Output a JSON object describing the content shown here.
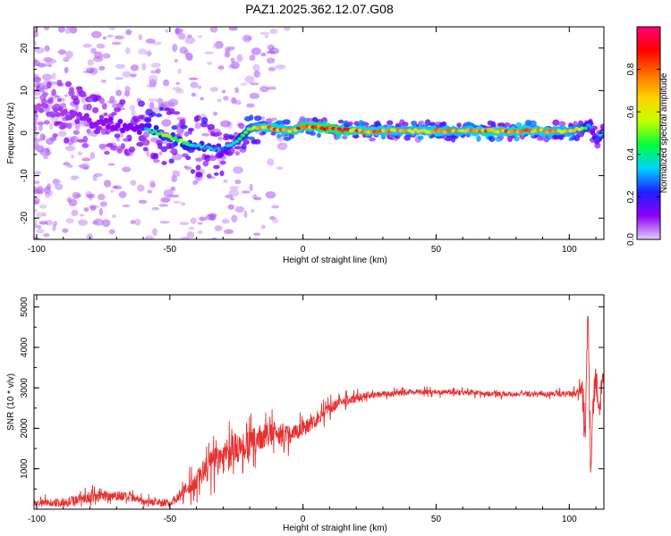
{
  "title": "PAZ1.2025.362.12.07.G08",
  "chart_data": [
    {
      "type": "heatmap",
      "panel": "spectrogram",
      "xlabel": "Height of straight line (km)",
      "ylabel": "Frequency (Hz)",
      "xlim": [
        -101,
        113
      ],
      "ylim": [
        -25,
        25
      ],
      "xticks": [
        -100,
        -50,
        0,
        50,
        100
      ],
      "yticks": [
        -20,
        -10,
        0,
        10,
        20
      ],
      "ridge": {
        "x": [
          -100,
          -90,
          -80,
          -70,
          -60,
          -55,
          -50,
          -45,
          -40,
          -35,
          -30,
          -25,
          -20,
          -15,
          -10,
          -5,
          0,
          5,
          10,
          20,
          30,
          40,
          50,
          60,
          70,
          80,
          90,
          100,
          105,
          108,
          110,
          113
        ],
        "freq": [
          6,
          5,
          3,
          2,
          1,
          0,
          -1,
          -2,
          -3,
          -3.5,
          -4,
          -2,
          1,
          1.5,
          1,
          0.5,
          1.5,
          1.5,
          1,
          0.5,
          0.5,
          0.5,
          0.5,
          0.5,
          0.5,
          0.5,
          0.5,
          0.5,
          1,
          2,
          -2,
          0.5
        ],
        "amplitude": [
          0.15,
          0.18,
          0.22,
          0.25,
          0.3,
          0.5,
          0.55,
          0.5,
          0.4,
          0.35,
          0.3,
          0.45,
          0.6,
          0.75,
          0.8,
          0.7,
          0.85,
          0.9,
          0.95,
          0.8,
          0.75,
          0.7,
          0.75,
          0.7,
          0.8,
          0.78,
          0.75,
          0.7,
          0.6,
          0.3,
          0.2,
          0.4
        ]
      },
      "colorbar": {
        "label": "Normalized spectral amplitude",
        "range": [
          0,
          1
        ],
        "ticks": [
          "0.0",
          "0.2",
          "0.4",
          "0.6",
          "0.8"
        ],
        "tick_values": [
          0.0,
          0.2,
          0.4,
          0.6,
          0.8
        ],
        "stops": [
          "#e0d0f8",
          "#8c00f5",
          "#1e1eff",
          "#00d2ff",
          "#00ff3c",
          "#c8ff00",
          "#ffd200",
          "#ff6e00",
          "#ff0000",
          "#ff0078"
        ]
      }
    },
    {
      "type": "line",
      "panel": "snr",
      "xlabel": "Height of straight line (km)",
      "ylabel": "SNR (10 * v/v)",
      "xlim": [
        -101,
        113
      ],
      "ylim": [
        0,
        5300
      ],
      "xticks": [
        -100,
        -50,
        0,
        50,
        100
      ],
      "yticks": [
        1000,
        2000,
        3000,
        4000,
        5000
      ],
      "color": "#e83030",
      "series": [
        {
          "name": "SNR",
          "x": [
            -101,
            -90,
            -80,
            -70,
            -60,
            -50,
            -45,
            -40,
            -35,
            -30,
            -25,
            -20,
            -15,
            -10,
            -5,
            0,
            5,
            10,
            15,
            20,
            25,
            30,
            35,
            40,
            50,
            60,
            70,
            80,
            90,
            100,
            103,
            105,
            106,
            107,
            108,
            109,
            110,
            111,
            112,
            113
          ],
          "base": [
            150,
            170,
            300,
            350,
            200,
            150,
            400,
            700,
            1100,
            1300,
            1500,
            1600,
            1800,
            1900,
            1850,
            2000,
            2200,
            2500,
            2650,
            2750,
            2800,
            2850,
            2850,
            2900,
            2900,
            2900,
            2850,
            2850,
            2850,
            2850,
            2850,
            3000,
            2000,
            5000,
            1000,
            2500,
            3500,
            2200,
            3000,
            3300
          ],
          "noise": [
            120,
            150,
            200,
            200,
            120,
            120,
            250,
            400,
            550,
            600,
            550,
            500,
            450,
            400,
            350,
            300,
            250,
            200,
            180,
            150,
            120,
            100,
            100,
            90,
            90,
            90,
            90,
            90,
            90,
            100,
            150,
            300,
            600,
            500,
            500,
            600,
            500,
            400,
            300,
            300
          ]
        }
      ]
    }
  ]
}
